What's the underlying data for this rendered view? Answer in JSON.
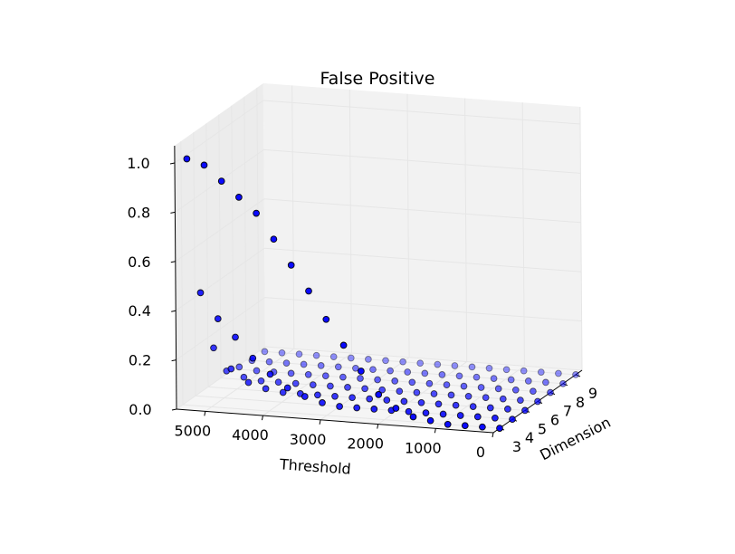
{
  "chart_data": {
    "type": "scatter",
    "title": "False Positive",
    "xlabel": "Threshold",
    "ylabel": "Dimension",
    "zlabel": "",
    "x_ticks": [
      "5000",
      "4000",
      "3000",
      "2000",
      "1000",
      "0"
    ],
    "y_ticks": [
      "3",
      "4",
      "5",
      "6",
      "7",
      "8",
      "9"
    ],
    "z_ticks": [
      "0.0",
      "0.2",
      "0.4",
      "0.6",
      "0.8",
      "1.0"
    ],
    "xlim": [
      0,
      5500
    ],
    "ylim": [
      2.5,
      9.5
    ],
    "zlim": [
      0,
      1
    ],
    "grid": true,
    "marker_color": "#0000ff",
    "edge_color": "#000000",
    "series": [
      {
        "dimension": 3,
        "x": [
          0,
          300,
          600,
          900,
          1200,
          1500,
          1800,
          2100,
          2400,
          2700,
          3000,
          3300,
          3600,
          3900,
          4200,
          4500,
          4800,
          5100,
          5400
        ],
        "y": [
          3,
          3,
          3,
          3,
          3,
          3,
          3,
          3,
          3,
          3,
          3,
          3,
          3,
          3,
          3,
          3,
          3,
          3,
          3
        ],
        "z": [
          0.0,
          0.0,
          0.0,
          0.0,
          0.01,
          0.02,
          0.05,
          0.1,
          0.19,
          0.29,
          0.39,
          0.5,
          0.6,
          0.7,
          0.8,
          0.86,
          0.92,
          0.98,
          1.0
        ]
      },
      {
        "dimension": 4,
        "x": [
          0,
          300,
          600,
          900,
          1200,
          1500,
          1800,
          2100,
          2400,
          2700,
          3000,
          3300,
          3600,
          3900,
          4200,
          4500,
          4800,
          5100,
          5400
        ],
        "y": [
          4,
          4,
          4,
          4,
          4,
          4,
          4,
          4,
          4,
          4,
          4,
          4,
          4,
          4,
          4,
          4,
          4,
          4,
          4
        ],
        "z": [
          0.0,
          0.0,
          0.0,
          0.0,
          0.0,
          0.0,
          0.0,
          0.0,
          0.0,
          0.0,
          0.0,
          0.01,
          0.03,
          0.06,
          0.11,
          0.17,
          0.25,
          0.32,
          0.42
        ]
      },
      {
        "dimension": 5,
        "x": [
          0,
          300,
          600,
          900,
          1200,
          1500,
          1800,
          2100,
          2400,
          2700,
          3000,
          3300,
          3600,
          3900,
          4200,
          4500,
          4800,
          5100,
          5400
        ],
        "y": [
          5,
          5,
          5,
          5,
          5,
          5,
          5,
          5,
          5,
          5,
          5,
          5,
          5,
          5,
          5,
          5,
          5,
          5,
          5
        ],
        "z": [
          0.0,
          0.0,
          0.0,
          0.0,
          0.0,
          0.0,
          0.0,
          0.0,
          0.0,
          0.0,
          0.0,
          0.0,
          0.0,
          0.0,
          0.0,
          0.01,
          0.03,
          0.08,
          0.16
        ]
      },
      {
        "dimension": 6,
        "x": [
          0,
          300,
          600,
          900,
          1200,
          1500,
          1800,
          2100,
          2400,
          2700,
          3000,
          3300,
          3600,
          3900,
          4200,
          4500,
          4800,
          5100,
          5400
        ],
        "y": [
          6,
          6,
          6,
          6,
          6,
          6,
          6,
          6,
          6,
          6,
          6,
          6,
          6,
          6,
          6,
          6,
          6,
          6,
          6
        ],
        "z": [
          0.0,
          0.0,
          0.0,
          0.0,
          0.0,
          0.0,
          0.0,
          0.0,
          0.0,
          0.0,
          0.0,
          0.0,
          0.0,
          0.0,
          0.0,
          0.0,
          0.0,
          0.01,
          0.03
        ]
      },
      {
        "dimension": 7,
        "x": [
          0,
          300,
          600,
          900,
          1200,
          1500,
          1800,
          2100,
          2400,
          2700,
          3000,
          3300,
          3600,
          3900,
          4200,
          4500,
          4800,
          5100,
          5400
        ],
        "y": [
          7,
          7,
          7,
          7,
          7,
          7,
          7,
          7,
          7,
          7,
          7,
          7,
          7,
          7,
          7,
          7,
          7,
          7,
          7
        ],
        "z": [
          0.0,
          0.0,
          0.0,
          0.0,
          0.0,
          0.0,
          0.0,
          0.0,
          0.0,
          0.0,
          0.0,
          0.0,
          0.0,
          0.0,
          0.0,
          0.0,
          0.0,
          0.0,
          0.01
        ]
      },
      {
        "dimension": 8,
        "x": [
          0,
          300,
          600,
          900,
          1200,
          1500,
          1800,
          2100,
          2400,
          2700,
          3000,
          3300,
          3600,
          3900,
          4200,
          4500,
          4800,
          5100,
          5400
        ],
        "y": [
          8,
          8,
          8,
          8,
          8,
          8,
          8,
          8,
          8,
          8,
          8,
          8,
          8,
          8,
          8,
          8,
          8,
          8,
          8
        ],
        "z": [
          0.0,
          0.0,
          0.0,
          0.0,
          0.0,
          0.0,
          0.0,
          0.0,
          0.0,
          0.0,
          0.0,
          0.0,
          0.0,
          0.0,
          0.0,
          0.0,
          0.0,
          0.0,
          0.0
        ]
      },
      {
        "dimension": 9,
        "x": [
          0,
          300,
          600,
          900,
          1200,
          1500,
          1800,
          2100,
          2400,
          2700,
          3000,
          3300,
          3600,
          3900,
          4200,
          4500,
          4800,
          5100,
          5400
        ],
        "y": [
          9,
          9,
          9,
          9,
          9,
          9,
          9,
          9,
          9,
          9,
          9,
          9,
          9,
          9,
          9,
          9,
          9,
          9,
          9
        ],
        "z": [
          0.0,
          0.0,
          0.0,
          0.0,
          0.0,
          0.0,
          0.0,
          0.0,
          0.0,
          0.0,
          0.0,
          0.0,
          0.0,
          0.0,
          0.0,
          0.0,
          0.0,
          0.0,
          0.0
        ]
      }
    ]
  }
}
